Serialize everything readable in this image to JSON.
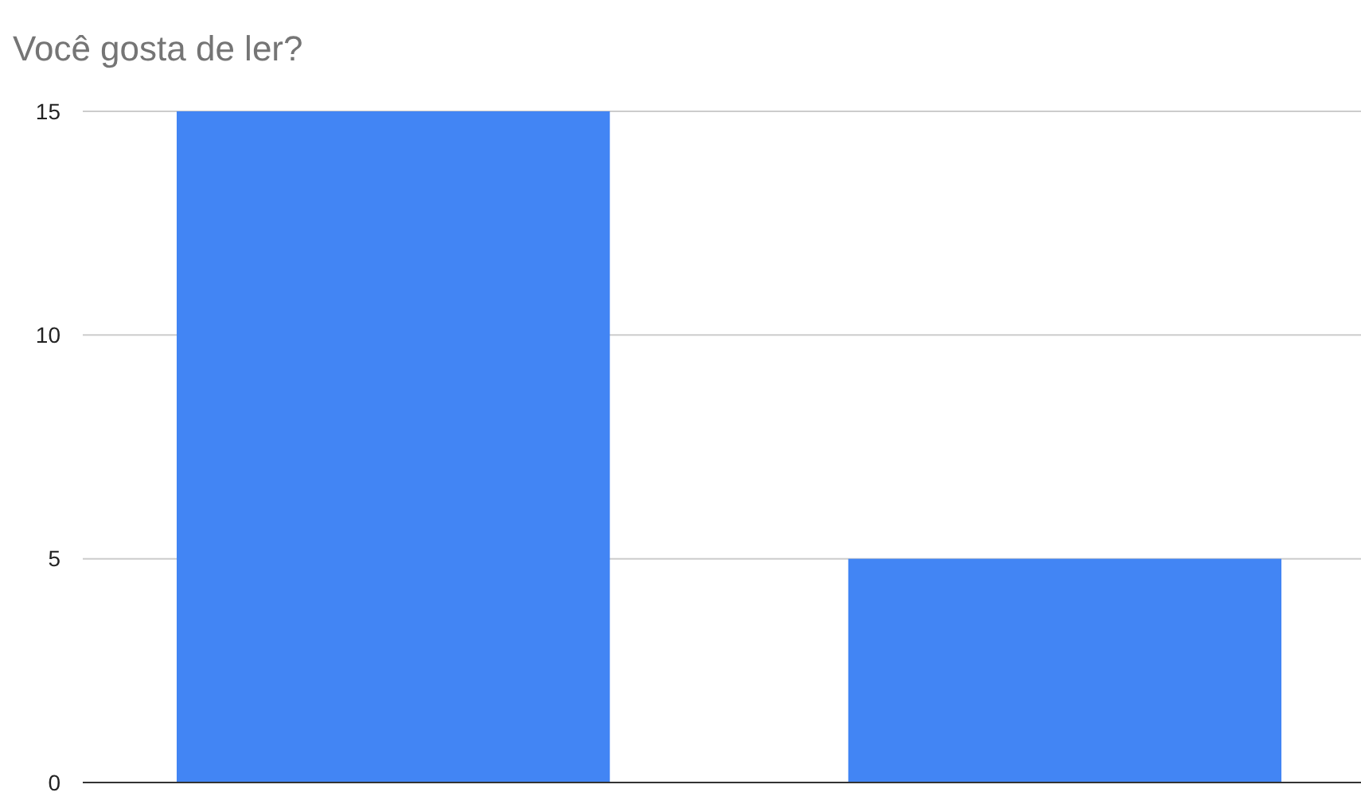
{
  "chart_data": {
    "type": "bar",
    "title": "Você gosta de ler?",
    "categories": [
      null,
      null
    ],
    "values": [
      15,
      5
    ],
    "color": "#4285f4",
    "ylim": [
      0,
      15
    ],
    "yticks": [
      0,
      5,
      10,
      15
    ],
    "grid": "y"
  }
}
